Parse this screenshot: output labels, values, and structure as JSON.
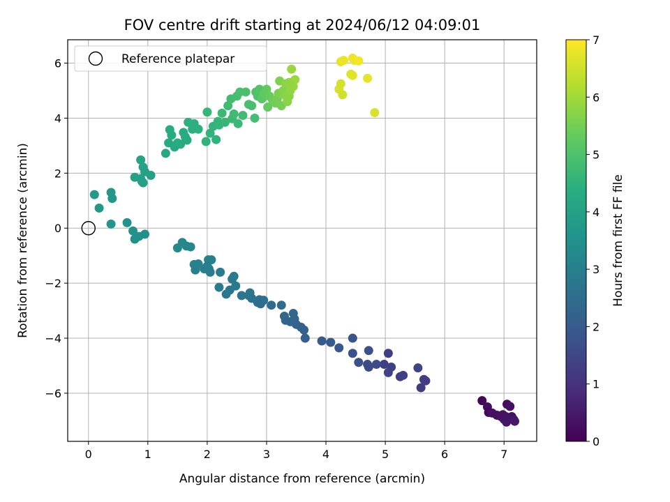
{
  "chart_data": {
    "type": "scatter",
    "title": "FOV centre drift starting at 2024/06/12 04:09:01",
    "xlabel": "Angular distance from reference (arcmin)",
    "ylabel": "Rotation from reference (arcmin)",
    "xlim": [
      -0.35,
      7.55
    ],
    "ylim": [
      -7.75,
      6.85
    ],
    "x_ticks": [
      0,
      1,
      2,
      3,
      4,
      5,
      6,
      7
    ],
    "y_ticks": [
      -6,
      -4,
      -2,
      0,
      2,
      4,
      6
    ],
    "grid": true,
    "legend": {
      "placement": "top-left",
      "entries": [
        "Reference platepar"
      ]
    },
    "reference_point": {
      "name": "Reference platepar",
      "x": 0,
      "y": 0
    },
    "colorbar": {
      "label": "Hours from first FF file",
      "range": [
        0,
        7
      ],
      "ticks": [
        0,
        1,
        2,
        3,
        4,
        5,
        6,
        7
      ],
      "colormap": "viridis"
    },
    "points": [
      [
        6.63,
        -6.27,
        0.1
      ],
      [
        6.72,
        -6.5,
        0.2
      ],
      [
        6.74,
        -6.7,
        0.15
      ],
      [
        6.8,
        -6.72,
        0.3
      ],
      [
        6.88,
        -6.8,
        0.25
      ],
      [
        6.95,
        -6.85,
        0.3
      ],
      [
        7.0,
        -6.95,
        0.35
      ],
      [
        7.04,
        -7.05,
        0.4
      ],
      [
        7.05,
        -6.4,
        0.2
      ],
      [
        7.1,
        -6.48,
        0.3
      ],
      [
        7.13,
        -6.85,
        0.35
      ],
      [
        7.16,
        -6.95,
        0.4
      ],
      [
        7.18,
        -7.02,
        0.45
      ],
      [
        6.98,
        -6.78,
        0.3
      ],
      [
        7.03,
        -6.85,
        0.35
      ],
      [
        5.05,
        -4.55,
        1.3
      ],
      [
        4.98,
        -4.95,
        1.3
      ],
      [
        5.05,
        -5.25,
        1.4
      ],
      [
        5.1,
        -5.05,
        1.35
      ],
      [
        5.25,
        -5.4,
        1.3
      ],
      [
        5.3,
        -5.35,
        1.35
      ],
      [
        5.55,
        -5.08,
        1.4
      ],
      [
        5.6,
        -5.8,
        1.2
      ],
      [
        5.65,
        -5.5,
        1.3
      ],
      [
        5.68,
        -5.55,
        1.25
      ],
      [
        4.45,
        -4.0,
        1.8
      ],
      [
        4.45,
        -4.55,
        1.75
      ],
      [
        4.55,
        -4.88,
        1.7
      ],
      [
        4.7,
        -4.95,
        1.6
      ],
      [
        4.72,
        -5.05,
        1.55
      ],
      [
        4.72,
        -4.45,
        1.7
      ],
      [
        4.85,
        -4.95,
        1.6
      ],
      [
        3.93,
        -4.1,
        2.0
      ],
      [
        4.08,
        -4.15,
        1.95
      ],
      [
        4.22,
        -4.35,
        1.9
      ],
      [
        3.45,
        -3.1,
        2.3
      ],
      [
        3.47,
        -3.3,
        2.25
      ],
      [
        3.5,
        -3.5,
        2.2
      ],
      [
        3.3,
        -3.2,
        2.35
      ],
      [
        3.32,
        -3.35,
        2.3
      ],
      [
        3.58,
        -3.6,
        2.2
      ],
      [
        3.63,
        -3.7,
        2.15
      ],
      [
        3.65,
        -4.0,
        2.1
      ],
      [
        3.4,
        -3.4,
        2.25
      ],
      [
        3.08,
        -2.8,
        2.5
      ],
      [
        3.25,
        -2.8,
        2.45
      ],
      [
        2.85,
        -2.7,
        2.6
      ],
      [
        2.88,
        -2.6,
        2.55
      ],
      [
        2.9,
        -2.75,
        2.5
      ],
      [
        2.95,
        -2.62,
        2.55
      ],
      [
        2.7,
        -2.45,
        2.65
      ],
      [
        2.72,
        -2.35,
        2.7
      ],
      [
        2.75,
        -2.55,
        2.6
      ],
      [
        2.58,
        -2.45,
        2.7
      ],
      [
        2.38,
        -2.25,
        2.75
      ],
      [
        2.32,
        -2.4,
        2.8
      ],
      [
        2.42,
        -1.85,
        2.85
      ],
      [
        2.45,
        -1.75,
        2.85
      ],
      [
        2.48,
        -2.1,
        2.8
      ],
      [
        2.22,
        -1.6,
        2.9
      ],
      [
        2.2,
        -2.15,
        2.85
      ],
      [
        1.95,
        -1.48,
        3.0
      ],
      [
        2.0,
        -1.38,
        3.0
      ],
      [
        2.03,
        -1.48,
        2.95
      ],
      [
        2.05,
        -1.6,
        2.95
      ],
      [
        2.02,
        -1.15,
        3.05
      ],
      [
        2.07,
        -1.15,
        3.05
      ],
      [
        1.85,
        -1.3,
        3.1
      ],
      [
        1.78,
        -1.32,
        3.1
      ],
      [
        1.8,
        -1.52,
        3.05
      ],
      [
        1.65,
        -0.65,
        3.2
      ],
      [
        1.72,
        -0.68,
        3.2
      ],
      [
        1.58,
        -0.52,
        3.25
      ],
      [
        1.5,
        -0.72,
        3.25
      ],
      [
        0.78,
        -0.4,
        3.5
      ],
      [
        0.85,
        -0.3,
        3.5
      ],
      [
        0.95,
        -0.22,
        3.45
      ],
      [
        0.75,
        -0.1,
        3.55
      ],
      [
        0.65,
        0.2,
        3.6
      ],
      [
        0.38,
        0.15,
        3.65
      ],
      [
        0.1,
        1.22,
        3.75
      ],
      [
        0.18,
        0.73,
        3.75
      ],
      [
        0.38,
        1.3,
        3.7
      ],
      [
        0.4,
        1.08,
        3.7
      ],
      [
        0.78,
        1.85,
        4.0
      ],
      [
        0.88,
        1.8,
        4.0
      ],
      [
        0.92,
        1.65,
        3.95
      ],
      [
        0.88,
        2.48,
        4.05
      ],
      [
        0.92,
        2.22,
        4.05
      ],
      [
        0.95,
        2.05,
        4.0
      ],
      [
        1.05,
        1.92,
        3.95
      ],
      [
        0.9,
        1.7,
        3.95
      ],
      [
        1.3,
        2.72,
        4.2
      ],
      [
        1.35,
        3.1,
        4.25
      ],
      [
        1.37,
        3.58,
        4.3
      ],
      [
        1.4,
        3.38,
        4.3
      ],
      [
        1.45,
        2.95,
        4.25
      ],
      [
        1.5,
        3.1,
        4.3
      ],
      [
        1.55,
        3.05,
        4.3
      ],
      [
        1.6,
        3.48,
        4.35
      ],
      [
        1.63,
        3.32,
        4.35
      ],
      [
        1.66,
        3.2,
        4.3
      ],
      [
        1.68,
        3.85,
        4.45
      ],
      [
        1.75,
        3.6,
        4.4
      ],
      [
        1.78,
        3.8,
        4.45
      ],
      [
        1.85,
        3.6,
        4.45
      ],
      [
        2.0,
        4.22,
        4.6
      ],
      [
        1.98,
        3.15,
        4.5
      ],
      [
        2.05,
        3.45,
        4.55
      ],
      [
        2.1,
        3.7,
        4.55
      ],
      [
        2.15,
        3.22,
        4.5
      ],
      [
        2.18,
        3.88,
        4.6
      ],
      [
        2.2,
        3.75,
        4.6
      ],
      [
        2.25,
        4.18,
        4.7
      ],
      [
        2.3,
        3.85,
        4.65
      ],
      [
        2.35,
        4.45,
        4.75
      ],
      [
        2.4,
        4.7,
        4.8
      ],
      [
        2.42,
        3.98,
        4.7
      ],
      [
        2.45,
        4.15,
        4.75
      ],
      [
        2.5,
        4.8,
        4.85
      ],
      [
        2.52,
        3.8,
        4.7
      ],
      [
        2.55,
        4.95,
        4.9
      ],
      [
        2.6,
        4.1,
        4.8
      ],
      [
        2.65,
        4.95,
        4.95
      ],
      [
        2.7,
        4.5,
        4.9
      ],
      [
        2.75,
        4.45,
        4.9
      ],
      [
        2.8,
        4.0,
        4.85
      ],
      [
        2.82,
        4.95,
        5.0
      ],
      [
        2.85,
        4.8,
        5.0
      ],
      [
        2.88,
        5.05,
        5.05
      ],
      [
        2.92,
        4.7,
        5.2
      ],
      [
        2.95,
        4.9,
        5.25
      ],
      [
        3.0,
        5.05,
        5.3
      ],
      [
        3.02,
        4.4,
        5.3
      ],
      [
        3.05,
        4.8,
        5.35
      ],
      [
        3.1,
        4.65,
        5.4
      ],
      [
        3.15,
        4.55,
        5.45
      ],
      [
        3.18,
        4.7,
        5.5
      ],
      [
        3.2,
        4.9,
        5.55
      ],
      [
        3.22,
        5.35,
        5.6
      ],
      [
        3.25,
        4.45,
        5.5
      ],
      [
        3.28,
        5.0,
        5.65
      ],
      [
        3.3,
        4.85,
        5.7
      ],
      [
        3.32,
        5.25,
        5.75
      ],
      [
        3.35,
        4.6,
        5.7
      ],
      [
        3.38,
        4.8,
        5.75
      ],
      [
        3.4,
        5.0,
        5.8
      ],
      [
        3.42,
        5.78,
        5.9
      ],
      [
        3.45,
        5.15,
        5.85
      ],
      [
        3.48,
        5.4,
        5.9
      ],
      [
        3.35,
        4.7,
        5.75
      ],
      [
        3.38,
        5.3,
        5.8
      ],
      [
        4.22,
        5.05,
        6.6
      ],
      [
        4.25,
        5.25,
        6.55
      ],
      [
        4.28,
        4.85,
        6.5
      ],
      [
        4.25,
        6.05,
        6.75
      ],
      [
        4.3,
        6.1,
        6.8
      ],
      [
        4.42,
        5.6,
        6.65
      ],
      [
        4.45,
        5.55,
        6.7
      ],
      [
        4.45,
        6.18,
        6.85
      ],
      [
        4.48,
        6.1,
        6.85
      ],
      [
        4.55,
        6.08,
        6.9
      ],
      [
        4.7,
        5.45,
        6.75
      ],
      [
        4.82,
        4.2,
        6.6
      ]
    ]
  }
}
